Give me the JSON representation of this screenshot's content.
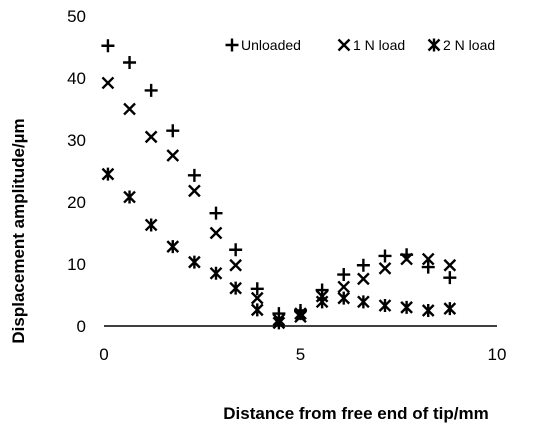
{
  "chart_data": {
    "type": "scatter",
    "title": "",
    "xlabel": "Distance from free end of tip/mm",
    "ylabel": "Displacement amplitude/µm",
    "xlim": [
      0,
      10
    ],
    "ylim": [
      0,
      50
    ],
    "x_ticks": [
      "0",
      "5",
      "10"
    ],
    "y_ticks": [
      "0",
      "10",
      "20",
      "30",
      "40",
      "50"
    ],
    "grid": false,
    "legend_position": "top-right",
    "series": [
      {
        "name": "Unloaded",
        "marker": "plus",
        "x": [
          0.1,
          0.65,
          1.2,
          1.75,
          2.3,
          2.85,
          3.35,
          3.9,
          4.45,
          5.0,
          5.55,
          6.1,
          6.6,
          7.15,
          7.7,
          8.25,
          8.8
        ],
        "y": [
          45.2,
          42.5,
          38.0,
          31.5,
          24.3,
          18.2,
          12.3,
          6.0,
          2.0,
          2.5,
          5.8,
          8.3,
          9.8,
          11.3,
          11.5,
          9.5,
          7.8
        ]
      },
      {
        "name": "1 N load",
        "marker": "x",
        "x": [
          0.1,
          0.65,
          1.2,
          1.75,
          2.3,
          2.85,
          3.35,
          3.9,
          4.45,
          5.0,
          5.55,
          6.1,
          6.6,
          7.15,
          7.7,
          8.25,
          8.8
        ],
        "y": [
          39.2,
          35.0,
          30.5,
          27.5,
          21.8,
          15.0,
          9.8,
          4.5,
          1.0,
          1.5,
          4.8,
          6.3,
          7.6,
          9.3,
          10.8,
          10.8,
          9.8
        ]
      },
      {
        "name": "2 N load",
        "marker": "asterisk",
        "x": [
          0.1,
          0.65,
          1.2,
          1.75,
          2.3,
          2.85,
          3.35,
          3.9,
          4.45,
          5.0,
          5.55,
          6.1,
          6.6,
          7.15,
          7.7,
          8.25,
          8.8
        ],
        "y": [
          24.5,
          20.8,
          16.3,
          12.8,
          10.3,
          8.5,
          6.1,
          2.6,
          0.5,
          2.0,
          3.9,
          4.5,
          3.9,
          3.3,
          3.0,
          2.5,
          2.8
        ]
      }
    ]
  }
}
